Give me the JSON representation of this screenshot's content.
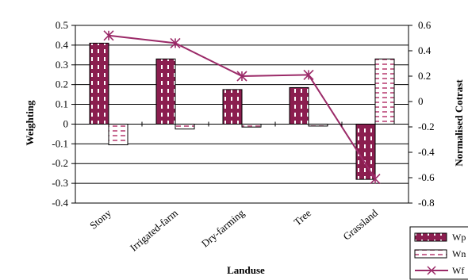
{
  "chart_data": {
    "type": "bar",
    "title": "",
    "xlabel": "Landuse",
    "ylabel": "Weighting",
    "y2label": "Normalised Cotrast",
    "categories": [
      "Stony",
      "Irrigated-farm",
      "Dry-farming",
      "Tree",
      "Grassland"
    ],
    "ylim": [
      -0.4,
      0.5
    ],
    "yticks": [
      "0.5",
      "0.4",
      "0.3",
      "0.2",
      "0.1",
      "0",
      "-0.1",
      "-0.2",
      "-0.3",
      "-0.4"
    ],
    "y2lim": [
      -0.8,
      0.6
    ],
    "y2ticks": [
      "0.6",
      "0.4",
      "0.2",
      "0",
      "-0.2",
      "-0.4",
      "-0.6",
      "-0.8"
    ],
    "grid": true,
    "legend_position": "bottom-right",
    "series": [
      {
        "name": "Wp",
        "kind": "bar",
        "axis": "left",
        "style": "dark-magenta-with-white-dashes",
        "values": [
          0.41,
          0.33,
          0.175,
          0.185,
          -0.28
        ]
      },
      {
        "name": "Wn",
        "kind": "bar",
        "axis": "left",
        "style": "white-with-magenta-dashes",
        "values": [
          -0.105,
          -0.025,
          -0.015,
          -0.01,
          0.33
        ]
      },
      {
        "name": "Wf",
        "kind": "line",
        "axis": "right",
        "marker": "star",
        "values": [
          0.52,
          0.46,
          0.2,
          0.21,
          -0.61
        ]
      }
    ],
    "colors": {
      "bar_fill": "#8b1e4f",
      "bar_dash": "#c86a92",
      "line": "#9b2a68",
      "grid": "#000000"
    }
  }
}
